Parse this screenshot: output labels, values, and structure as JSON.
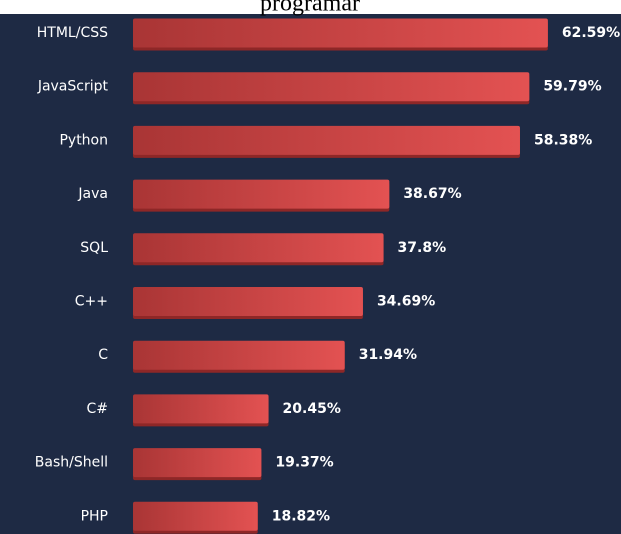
{
  "chart_data": {
    "type": "barh",
    "title": "programar",
    "categories": [
      "HTML/CSS",
      "JavaScript",
      "Python",
      "Java",
      "SQL",
      "C++",
      "C",
      "C#",
      "Bash/Shell",
      "PHP"
    ],
    "values": [
      62.59,
      59.79,
      58.38,
      38.67,
      37.8,
      34.69,
      31.94,
      20.45,
      19.37,
      18.82
    ],
    "value_labels": [
      "62.59%",
      "59.79%",
      "58.38%",
      "38.67%",
      "37.8%",
      "34.69%",
      "31.94%",
      "20.45%",
      "19.37%",
      "18.82%"
    ],
    "color": "#d94646",
    "xlim": [
      0,
      70
    ]
  }
}
